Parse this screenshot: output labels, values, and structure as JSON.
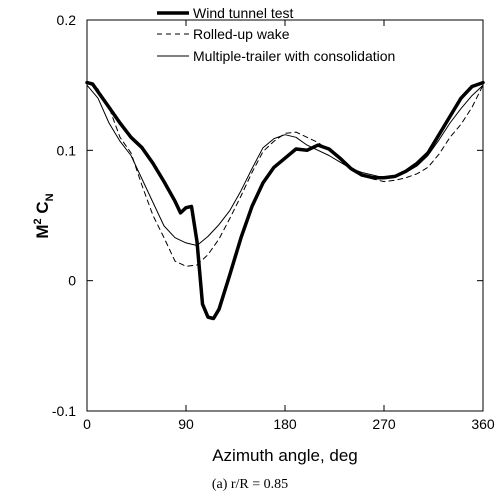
{
  "chart_data": {
    "type": "line",
    "xlabel": "Azimuth angle, deg",
    "ylabel_main": "M",
    "ylabel_sup": "2",
    "ylabel_c": " C",
    "ylabel_sub": "N",
    "caption": "(a) r/R = 0.85",
    "xlim": [
      0,
      360
    ],
    "ylim": [
      -0.1,
      0.2
    ],
    "xticks": [
      0,
      90,
      180,
      270,
      360
    ],
    "xtick_labels": [
      "0",
      "90",
      "180",
      "270",
      "360"
    ],
    "yticks": [
      -0.1,
      0,
      0.1,
      0.2
    ],
    "ytick_labels": [
      "-0.1",
      "0",
      "0.1",
      "0.2"
    ],
    "grid": false,
    "legend_position": "top-right",
    "series": [
      {
        "name": "Wind tunnel test",
        "style": "thick-solid",
        "x": [
          0,
          5,
          10,
          20,
          30,
          40,
          50,
          60,
          70,
          80,
          85,
          90,
          95,
          100,
          105,
          110,
          115,
          120,
          130,
          140,
          150,
          160,
          170,
          180,
          190,
          200,
          210,
          220,
          230,
          240,
          250,
          260,
          270,
          280,
          290,
          300,
          310,
          320,
          330,
          340,
          350,
          360
        ],
        "y": [
          0.152,
          0.151,
          0.145,
          0.133,
          0.121,
          0.11,
          0.102,
          0.09,
          0.076,
          0.061,
          0.052,
          0.056,
          0.057,
          0.03,
          -0.018,
          -0.028,
          -0.029,
          -0.022,
          0.005,
          0.033,
          0.057,
          0.075,
          0.087,
          0.094,
          0.101,
          0.1,
          0.104,
          0.101,
          0.094,
          0.086,
          0.081,
          0.079,
          0.079,
          0.08,
          0.084,
          0.09,
          0.098,
          0.112,
          0.126,
          0.14,
          0.149,
          0.152
        ]
      },
      {
        "name": "Rolled-up wake",
        "style": "dashed",
        "x": [
          0,
          10,
          20,
          30,
          40,
          50,
          60,
          70,
          80,
          90,
          100,
          110,
          120,
          130,
          140,
          150,
          160,
          170,
          180,
          190,
          200,
          210,
          220,
          230,
          240,
          250,
          260,
          270,
          280,
          290,
          300,
          310,
          320,
          330,
          340,
          350,
          360
        ],
        "y": [
          0.152,
          0.147,
          0.133,
          0.11,
          0.098,
          0.073,
          0.05,
          0.033,
          0.015,
          0.011,
          0.012,
          0.02,
          0.032,
          0.048,
          0.065,
          0.083,
          0.099,
          0.107,
          0.113,
          0.114,
          0.11,
          0.106,
          0.1,
          0.093,
          0.087,
          0.082,
          0.078,
          0.076,
          0.077,
          0.079,
          0.082,
          0.087,
          0.097,
          0.11,
          0.12,
          0.133,
          0.15
        ]
      },
      {
        "name": "Multiple-trailer with consolidation",
        "style": "thin-solid",
        "x": [
          0,
          10,
          20,
          30,
          40,
          50,
          60,
          70,
          80,
          90,
          100,
          110,
          120,
          130,
          140,
          150,
          160,
          170,
          180,
          190,
          200,
          210,
          220,
          230,
          240,
          250,
          260,
          270,
          280,
          290,
          300,
          310,
          320,
          330,
          340,
          350,
          360
        ],
        "y": [
          0.15,
          0.14,
          0.121,
          0.107,
          0.096,
          0.078,
          0.06,
          0.042,
          0.033,
          0.029,
          0.027,
          0.034,
          0.043,
          0.054,
          0.069,
          0.086,
          0.102,
          0.109,
          0.112,
          0.11,
          0.104,
          0.1,
          0.096,
          0.091,
          0.086,
          0.083,
          0.081,
          0.079,
          0.08,
          0.083,
          0.088,
          0.096,
          0.108,
          0.121,
          0.132,
          0.142,
          0.15
        ]
      }
    ]
  }
}
